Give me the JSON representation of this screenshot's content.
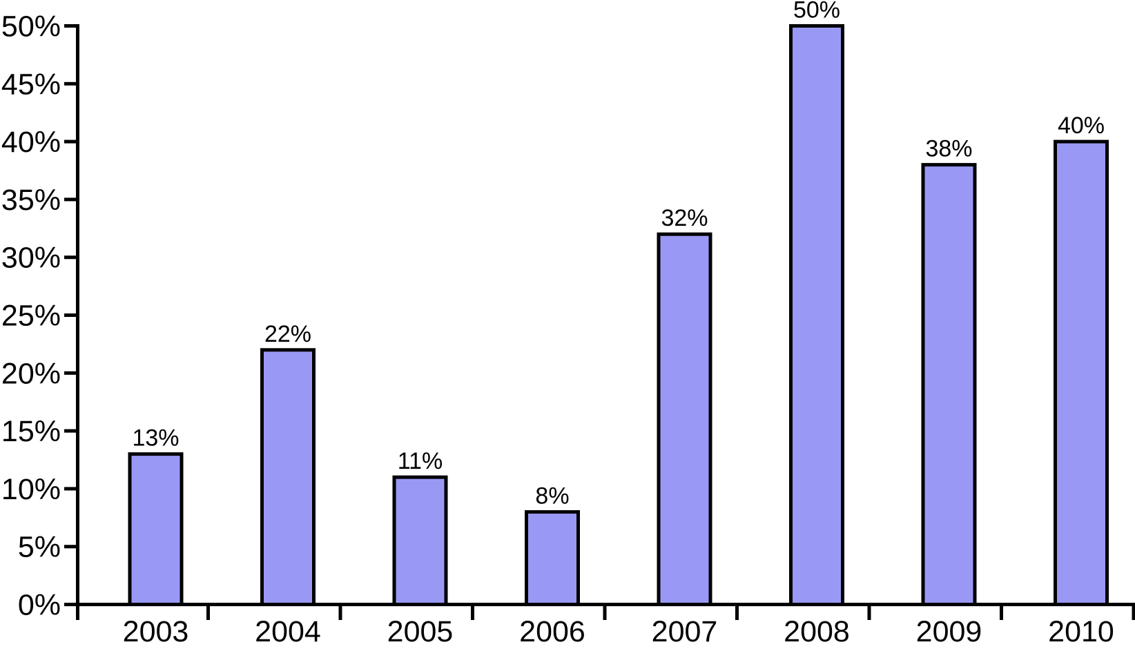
{
  "chart_data": {
    "type": "bar",
    "categories": [
      "2003",
      "2004",
      "2005",
      "2006",
      "2007",
      "2008",
      "2009",
      "2010"
    ],
    "values": [
      13,
      22,
      11,
      8,
      32,
      50,
      38,
      40
    ],
    "bar_labels": [
      "13%",
      "22%",
      "11%",
      "8%",
      "32%",
      "50%",
      "38%",
      "40%"
    ],
    "ytick_labels": [
      "0%",
      "5%",
      "10%",
      "15%",
      "20%",
      "25%",
      "30%",
      "35%",
      "40%",
      "45%",
      "50%"
    ],
    "title": "",
    "xlabel": "",
    "ylabel": "",
    "ylim": [
      0,
      50
    ],
    "ytick_step": 5,
    "grid": false,
    "legend": "none",
    "colors": {
      "bar_fill": "#9999F5",
      "bar_border": "#000000",
      "axis": "#000000",
      "text": "#000000",
      "background": "#FFFFFF"
    }
  }
}
